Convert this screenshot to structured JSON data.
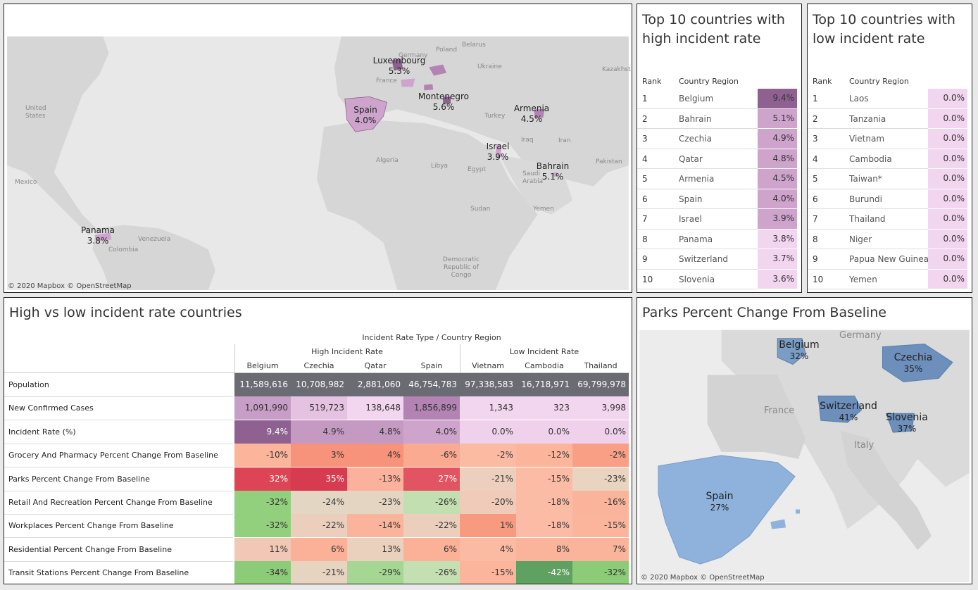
{
  "world_map": {
    "copyright": "© 2020 Mapbox © OpenStreetMap",
    "markers": [
      {
        "name": "Luxembourg",
        "value": "5.3%"
      },
      {
        "name": "Spain",
        "value": "4.0%"
      },
      {
        "name": "Montenegro",
        "value": "5.6%"
      },
      {
        "name": "Armenia",
        "value": "4.5%"
      },
      {
        "name": "Israel",
        "value": "3.9%"
      },
      {
        "name": "Bahrain",
        "value": "5.1%"
      },
      {
        "name": "Panama",
        "value": "3.8%"
      }
    ],
    "geo_labels": [
      "Germany",
      "Poland",
      "Belarus",
      "Ukraine",
      "Kazakhst",
      "France",
      "United States",
      "Turkey",
      "Iraq",
      "Iran",
      "Algeria",
      "Libya",
      "Egypt",
      "Saudi Arabia",
      "Pakistan",
      "Sudan",
      "Yemen",
      "Mexico",
      "Venezuela",
      "Colombia",
      "Democratic Republic of Congo"
    ]
  },
  "high_table": {
    "title": "Top 10 countries with high incident rate",
    "col_rank": "Rank",
    "col_country": "Country Region",
    "rows": [
      {
        "rank": "1",
        "country": "Belgium",
        "value": "9.4%",
        "color": "#8e6191"
      },
      {
        "rank": "2",
        "country": "Bahrain",
        "value": "5.1%",
        "color": "#cea3cc"
      },
      {
        "rank": "3",
        "country": "Czechia",
        "value": "4.9%",
        "color": "#cea3cc"
      },
      {
        "rank": "4",
        "country": "Qatar",
        "value": "4.8%",
        "color": "#cea3cc"
      },
      {
        "rank": "5",
        "country": "Armenia",
        "value": "4.5%",
        "color": "#cea3cc"
      },
      {
        "rank": "6",
        "country": "Spain",
        "value": "4.0%",
        "color": "#cea3cc"
      },
      {
        "rank": "7",
        "country": "Israel",
        "value": "3.9%",
        "color": "#cea3cc"
      },
      {
        "rank": "8",
        "country": "Panama",
        "value": "3.8%",
        "color": "#f2d5ee"
      },
      {
        "rank": "9",
        "country": "Switzerland",
        "value": "3.7%",
        "color": "#f2d5ee"
      },
      {
        "rank": "10",
        "country": "Slovenia",
        "value": "3.6%",
        "color": "#f2d5ee"
      }
    ]
  },
  "low_table": {
    "title": "Top 10 countries with low incident rate",
    "col_rank": "Rank",
    "col_country": "Country Region",
    "rows": [
      {
        "rank": "1",
        "country": "Laos",
        "value": "0.0%",
        "color": "#f2d5ee"
      },
      {
        "rank": "2",
        "country": "Tanzania",
        "value": "0.0%",
        "color": "#f2d5ee"
      },
      {
        "rank": "3",
        "country": "Vietnam",
        "value": "0.0%",
        "color": "#f2d5ee"
      },
      {
        "rank": "4",
        "country": "Cambodia",
        "value": "0.0%",
        "color": "#f2d5ee"
      },
      {
        "rank": "5",
        "country": "Taiwan*",
        "value": "0.0%",
        "color": "#f2d5ee"
      },
      {
        "rank": "6",
        "country": "Burundi",
        "value": "0.0%",
        "color": "#f2d5ee"
      },
      {
        "rank": "7",
        "country": "Thailand",
        "value": "0.0%",
        "color": "#f2d5ee"
      },
      {
        "rank": "8",
        "country": "Niger",
        "value": "0.0%",
        "color": "#f2d5ee"
      },
      {
        "rank": "9",
        "country": "Papua New Guinea",
        "value": "0.0%",
        "color": "#f2d5ee"
      },
      {
        "rank": "10",
        "country": "Yemen",
        "value": "0.0%",
        "color": "#f2d5ee"
      }
    ]
  },
  "comparison": {
    "title": "High vs low incident rate countries",
    "header": "Incident Rate Type  /  Country Region",
    "group_high": "High Incident Rate",
    "group_low": "Low Incident Rate",
    "countries": [
      "Belgium",
      "Czechia",
      "Qatar",
      "Spain",
      "Vietnam",
      "Cambodia",
      "Thailand"
    ],
    "rows": [
      {
        "label": "Population",
        "values": [
          "11,589,616",
          "10,708,982",
          "2,881,060",
          "46,754,783",
          "97,338,583",
          "16,718,971",
          "69,799,978"
        ],
        "colors": [
          "#6b6b74",
          "#6b6b74",
          "#6b6b74",
          "#6b6b74",
          "#6b6b74",
          "#6b6b74",
          "#6b6b74"
        ],
        "text": "#ffffff"
      },
      {
        "label": "New Confirmed Cases",
        "values": [
          "1,091,990",
          "519,723",
          "138,648",
          "1,856,899",
          "1,343",
          "323",
          "3,998"
        ],
        "colors": [
          "#c79ec6",
          "#e6c2e2",
          "#f2d5ee",
          "#b283b3",
          "#f2d5ee",
          "#f2d5ee",
          "#f2d5ee"
        ],
        "text": "#333333"
      },
      {
        "label": "Incident Rate (%)",
        "values": [
          "9.4%",
          "4.9%",
          "4.8%",
          "4.0%",
          "0.0%",
          "0.0%",
          "0.0%"
        ],
        "colors": [
          "#8e6191",
          "#c49ac3",
          "#c49ac3",
          "#cea3cc",
          "#f0d1ec",
          "#f0d1ec",
          "#f0d1ec"
        ],
        "text": "#333333"
      },
      {
        "label": "Grocery And Pharmacy Percent Change From Baseline",
        "values": [
          "-10%",
          "3%",
          "4%",
          "-6%",
          "-2%",
          "-12%",
          "-2%"
        ],
        "colors": [
          "#fbb59b",
          "#f6937a",
          "#f6937a",
          "#f9aa90",
          "#fbbba3",
          "#fbb59b",
          "#f99f86"
        ],
        "text": "#333333"
      },
      {
        "label": "Parks Percent Change From Baseline",
        "values": [
          "32%",
          "35%",
          "-13%",
          "27%",
          "-21%",
          "-15%",
          "-23%"
        ],
        "colors": [
          "#dd4556",
          "#d63b4f",
          "#fbb19b",
          "#e25461",
          "#edcfbd",
          "#fbbba4",
          "#e9d4c0"
        ],
        "text": "#ffffff"
      },
      {
        "label": "Retail And Recreation Percent Change From Baseline",
        "values": [
          "-32%",
          "-24%",
          "-23%",
          "-26%",
          "-20%",
          "-18%",
          "-16%"
        ],
        "colors": [
          "#93d07e",
          "#e3d6c3",
          "#e4d5c2",
          "#c1dfb0",
          "#f1cbb9",
          "#fbbca5",
          "#fbb49c"
        ],
        "text": "#333333"
      },
      {
        "label": "Workplaces Percent Change From Baseline",
        "values": [
          "-32%",
          "-22%",
          "-14%",
          "-22%",
          "1%",
          "-18%",
          "-15%"
        ],
        "colors": [
          "#93d07e",
          "#ebcfbc",
          "#fbb49c",
          "#ebcfbc",
          "#f79a80",
          "#fbbba4",
          "#fbb59d"
        ],
        "text": "#333333"
      },
      {
        "label": "Residential Percent Change From Baseline",
        "values": [
          "11%",
          "6%",
          "13%",
          "6%",
          "4%",
          "8%",
          "7%"
        ],
        "colors": [
          "#f1c8b5",
          "#fbb198",
          "#e9d1be",
          "#fbb198",
          "#fbbba3",
          "#fbb49c",
          "#fbb49c"
        ],
        "text": "#333333"
      },
      {
        "label": "Transit Stations Percent Change From Baseline",
        "values": [
          "-34%",
          "-21%",
          "-29%",
          "-26%",
          "-15%",
          "-42%",
          "-32%"
        ],
        "colors": [
          "#8ccb77",
          "#e6d3c0",
          "#a6d693",
          "#c4dfb2",
          "#fbb59d",
          "#5fa160",
          "#8ccb77"
        ],
        "text": "#333333"
      }
    ]
  },
  "parks_map": {
    "title": "Parks Percent Change From Baseline",
    "copyright": "© 2020 Mapbox © OpenStreetMap",
    "markers": [
      {
        "name": "Belgium",
        "value": "32%"
      },
      {
        "name": "Czechia",
        "value": "35%"
      },
      {
        "name": "Switzerland",
        "value": "41%"
      },
      {
        "name": "Slovenia",
        "value": "37%"
      },
      {
        "name": "Spain",
        "value": "27%"
      }
    ],
    "geo_labels": [
      "Germany",
      "France",
      "Italy"
    ]
  }
}
